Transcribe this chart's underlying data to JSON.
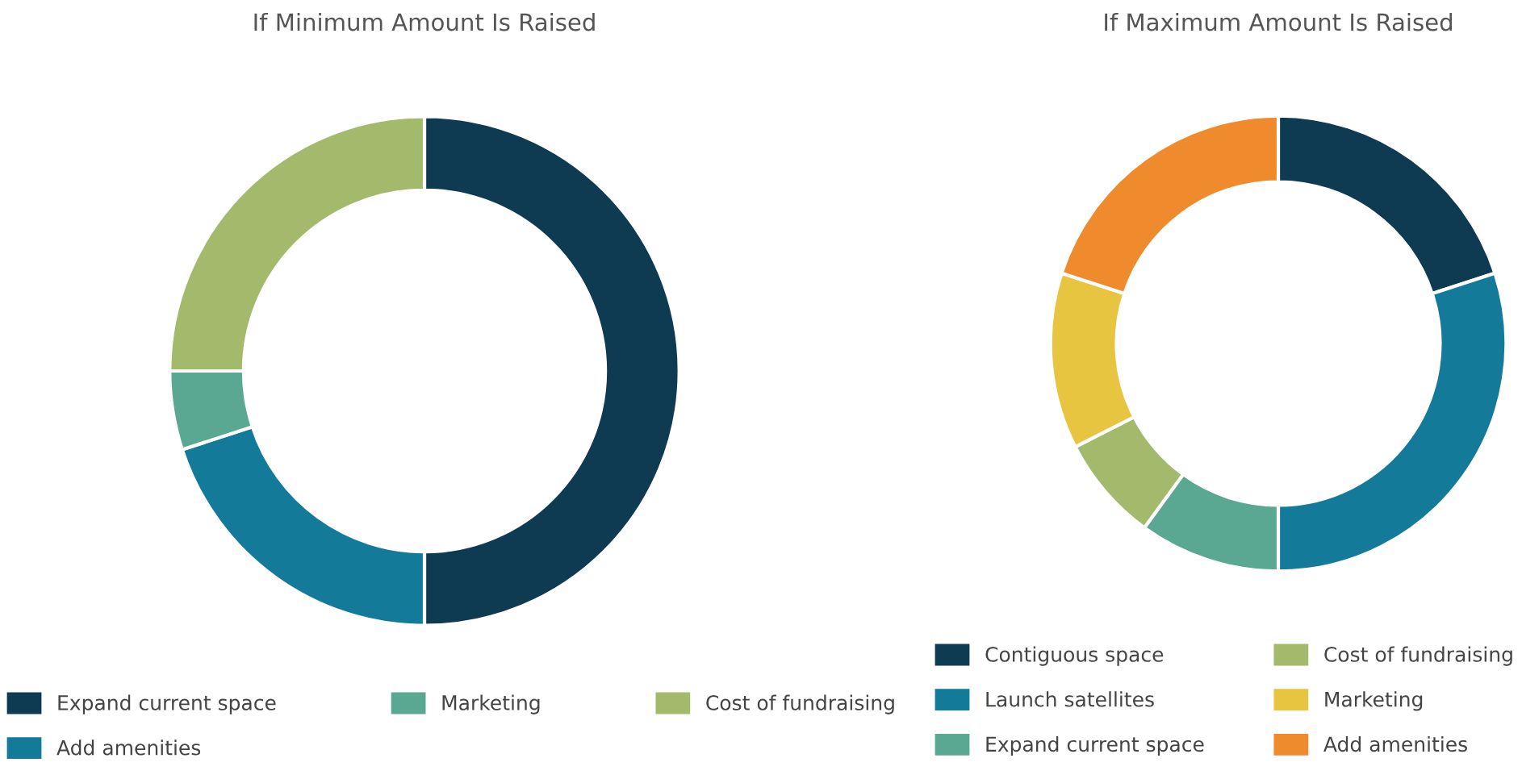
{
  "chart_data": [
    {
      "type": "donut",
      "title": "If Minimum Amount Is Raised",
      "categories": [
        "Expand current space",
        "Add amenities",
        "Marketing",
        "Cost of fundraising"
      ],
      "values": [
        50,
        20,
        5,
        25
      ],
      "colors": [
        "#0e3a52",
        "#137a9a",
        "#5aa892",
        "#a3b96c"
      ],
      "legend": "bottom"
    },
    {
      "type": "donut",
      "title": "If Maximum Amount Is Raised",
      "categories": [
        "Contiguous space",
        "Launch satellites",
        "Expand current space",
        "Cost of fundraising",
        "Marketing",
        "Add amenities"
      ],
      "values": [
        20,
        30,
        10,
        7.5,
        12.5,
        20
      ],
      "colors": [
        "#0e3a52",
        "#137a9a",
        "#5aa892",
        "#a3b96c",
        "#e8c541",
        "#ef8a2d"
      ],
      "legend": "bottom"
    }
  ]
}
